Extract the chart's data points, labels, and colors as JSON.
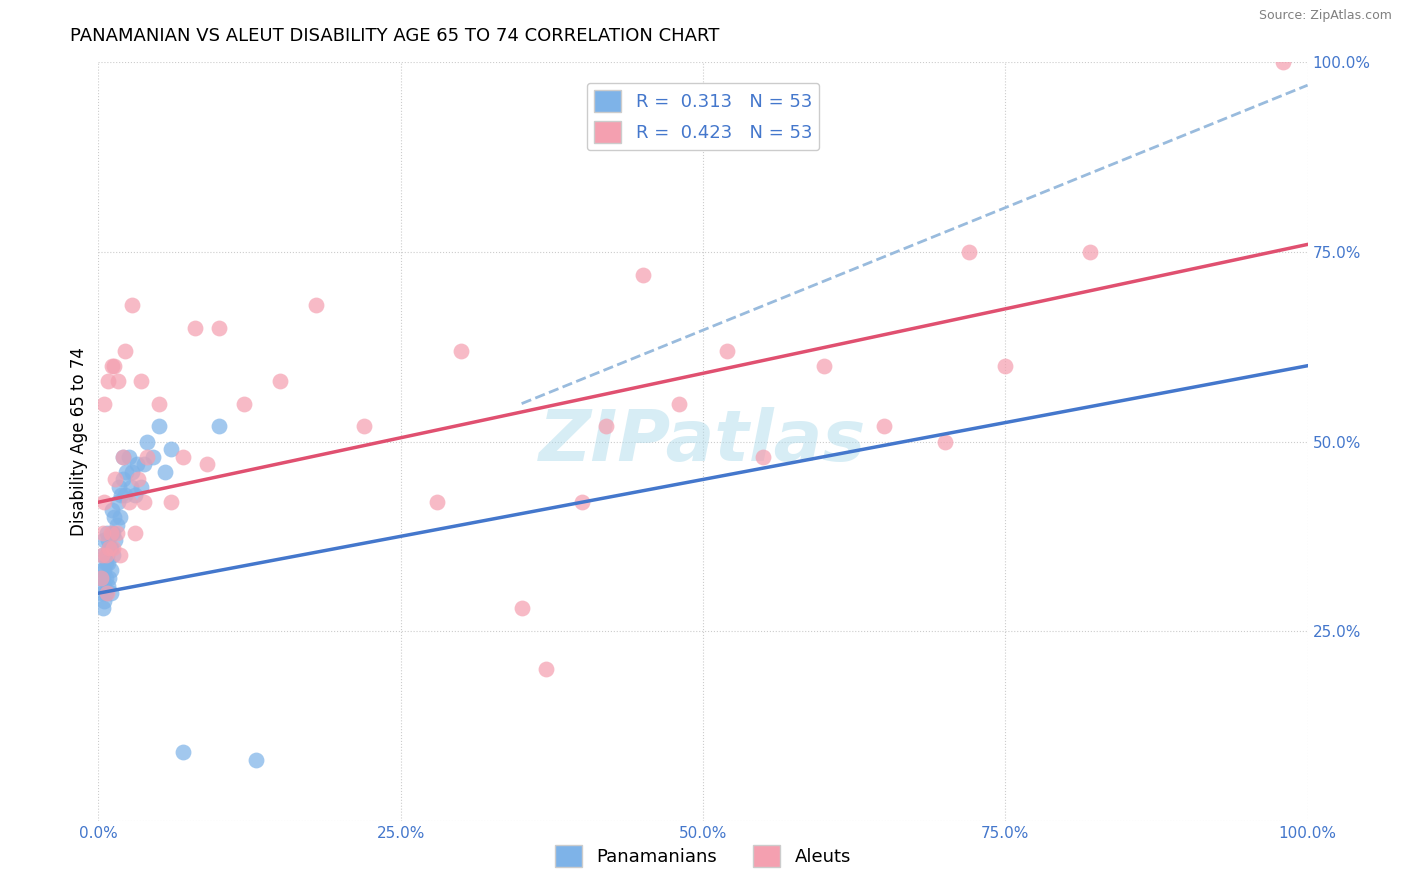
{
  "title": "PANAMANIAN VS ALEUT DISABILITY AGE 65 TO 74 CORRELATION CHART",
  "source": "Source: ZipAtlas.com",
  "ylabel": "Disability Age 65 to 74",
  "xlim": [
    0.0,
    1.0
  ],
  "ylim": [
    0.0,
    1.0
  ],
  "xticks": [
    0.0,
    0.25,
    0.5,
    0.75,
    1.0
  ],
  "xtick_labels": [
    "0.0%",
    "25.0%",
    "50.0%",
    "75.0%",
    "100.0%"
  ],
  "yticks": [
    0.0,
    0.25,
    0.5,
    0.75,
    1.0
  ],
  "ytick_labels": [
    "",
    "25.0%",
    "50.0%",
    "75.0%",
    "100.0%"
  ],
  "R_blue": 0.313,
  "N_blue": 53,
  "R_pink": 0.423,
  "N_pink": 53,
  "blue_color": "#7EB3E8",
  "pink_color": "#F4A0B0",
  "blue_line_color": "#4477CC",
  "pink_line_color": "#E05070",
  "dashed_line_color": "#99BBDD",
  "watermark": "ZIPatlas",
  "watermark_color": "#A8D8EA",
  "title_fontsize": 13,
  "axis_label_fontsize": 12,
  "tick_fontsize": 11,
  "legend_fontsize": 13,
  "background_color": "#FFFFFF",
  "grid_color": "#CCCCCC",
  "blue_line_x0": 0.0,
  "blue_line_y0": 0.3,
  "blue_line_x1": 1.0,
  "blue_line_y1": 0.6,
  "pink_line_x0": 0.0,
  "pink_line_y0": 0.42,
  "pink_line_x1": 1.0,
  "pink_line_y1": 0.76,
  "dashed_line_x0": 0.35,
  "dashed_line_y0": 0.55,
  "dashed_line_x1": 1.0,
  "dashed_line_y1": 0.97,
  "blue_x": [
    0.002,
    0.003,
    0.003,
    0.004,
    0.004,
    0.004,
    0.005,
    0.005,
    0.005,
    0.005,
    0.006,
    0.006,
    0.006,
    0.007,
    0.007,
    0.008,
    0.008,
    0.008,
    0.009,
    0.009,
    0.01,
    0.01,
    0.01,
    0.011,
    0.011,
    0.012,
    0.012,
    0.013,
    0.014,
    0.015,
    0.016,
    0.017,
    0.018,
    0.019,
    0.02,
    0.02,
    0.022,
    0.023,
    0.025,
    0.027,
    0.028,
    0.03,
    0.032,
    0.035,
    0.038,
    0.04,
    0.045,
    0.05,
    0.055,
    0.06,
    0.07,
    0.1,
    0.13
  ],
  "blue_y": [
    0.32,
    0.3,
    0.33,
    0.28,
    0.32,
    0.35,
    0.29,
    0.31,
    0.33,
    0.37,
    0.3,
    0.32,
    0.34,
    0.35,
    0.38,
    0.31,
    0.34,
    0.37,
    0.32,
    0.36,
    0.3,
    0.33,
    0.36,
    0.38,
    0.41,
    0.35,
    0.38,
    0.4,
    0.37,
    0.39,
    0.42,
    0.44,
    0.4,
    0.43,
    0.45,
    0.48,
    0.43,
    0.46,
    0.48,
    0.44,
    0.46,
    0.43,
    0.47,
    0.44,
    0.47,
    0.5,
    0.48,
    0.52,
    0.46,
    0.49,
    0.09,
    0.52,
    0.08
  ],
  "pink_x": [
    0.002,
    0.003,
    0.004,
    0.005,
    0.005,
    0.006,
    0.007,
    0.008,
    0.009,
    0.01,
    0.011,
    0.012,
    0.013,
    0.014,
    0.015,
    0.016,
    0.018,
    0.02,
    0.022,
    0.025,
    0.028,
    0.03,
    0.033,
    0.035,
    0.038,
    0.04,
    0.05,
    0.06,
    0.07,
    0.08,
    0.09,
    0.1,
    0.12,
    0.15,
    0.18,
    0.22,
    0.28,
    0.3,
    0.35,
    0.37,
    0.4,
    0.42,
    0.45,
    0.48,
    0.52,
    0.55,
    0.6,
    0.65,
    0.7,
    0.72,
    0.75,
    0.82,
    0.98
  ],
  "pink_y": [
    0.32,
    0.35,
    0.38,
    0.42,
    0.55,
    0.35,
    0.3,
    0.58,
    0.36,
    0.38,
    0.6,
    0.36,
    0.6,
    0.45,
    0.38,
    0.58,
    0.35,
    0.48,
    0.62,
    0.42,
    0.68,
    0.38,
    0.45,
    0.58,
    0.42,
    0.48,
    0.55,
    0.42,
    0.48,
    0.65,
    0.47,
    0.65,
    0.55,
    0.58,
    0.68,
    0.52,
    0.42,
    0.62,
    0.28,
    0.2,
    0.42,
    0.52,
    0.72,
    0.55,
    0.62,
    0.48,
    0.6,
    0.52,
    0.5,
    0.75,
    0.6,
    0.75,
    1.0
  ]
}
